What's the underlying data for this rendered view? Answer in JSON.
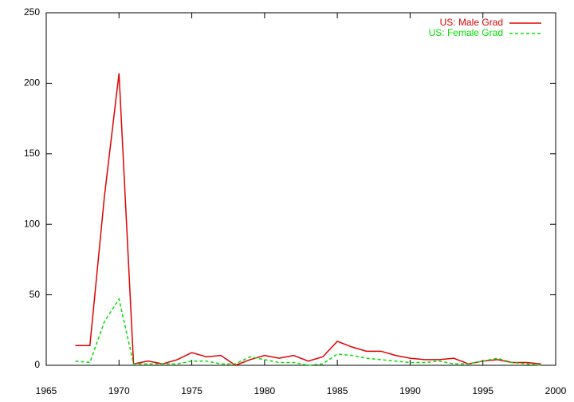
{
  "chart_data": {
    "type": "line",
    "x": [
      1967,
      1968,
      1969,
      1970,
      1971,
      1972,
      1973,
      1974,
      1975,
      1976,
      1977,
      1978,
      1979,
      1980,
      1981,
      1982,
      1983,
      1984,
      1985,
      1986,
      1987,
      1988,
      1989,
      1990,
      1991,
      1992,
      1993,
      1994,
      1995,
      1996,
      1997,
      1998,
      1999
    ],
    "series": [
      {
        "name": "US: Male Grad",
        "color": "#e00000",
        "dash": false,
        "values": [
          14,
          14,
          120,
          207,
          1,
          3,
          1,
          4,
          9,
          6,
          7,
          0,
          4,
          7,
          5,
          7,
          3,
          6,
          17,
          13,
          10,
          10,
          7,
          5,
          4,
          4,
          5,
          1,
          3,
          4,
          2,
          2,
          1
        ]
      },
      {
        "name": "US: Female Grad",
        "color": "#00e000",
        "dash": true,
        "values": [
          3,
          2,
          31,
          47,
          1,
          1,
          1,
          1,
          3,
          3,
          1,
          1,
          6,
          4,
          2,
          2,
          0,
          1,
          8,
          7,
          5,
          4,
          3,
          2,
          2,
          3,
          1,
          1,
          3,
          5,
          2,
          1,
          0
        ]
      }
    ],
    "xlim": [
      1965,
      2000
    ],
    "xticks": [
      1965,
      1970,
      1975,
      1980,
      1985,
      1990,
      1995,
      2000
    ],
    "ylim": [
      0,
      250
    ],
    "yticks": [
      0,
      50,
      100,
      150,
      200,
      250
    ],
    "legend": "top-right"
  }
}
